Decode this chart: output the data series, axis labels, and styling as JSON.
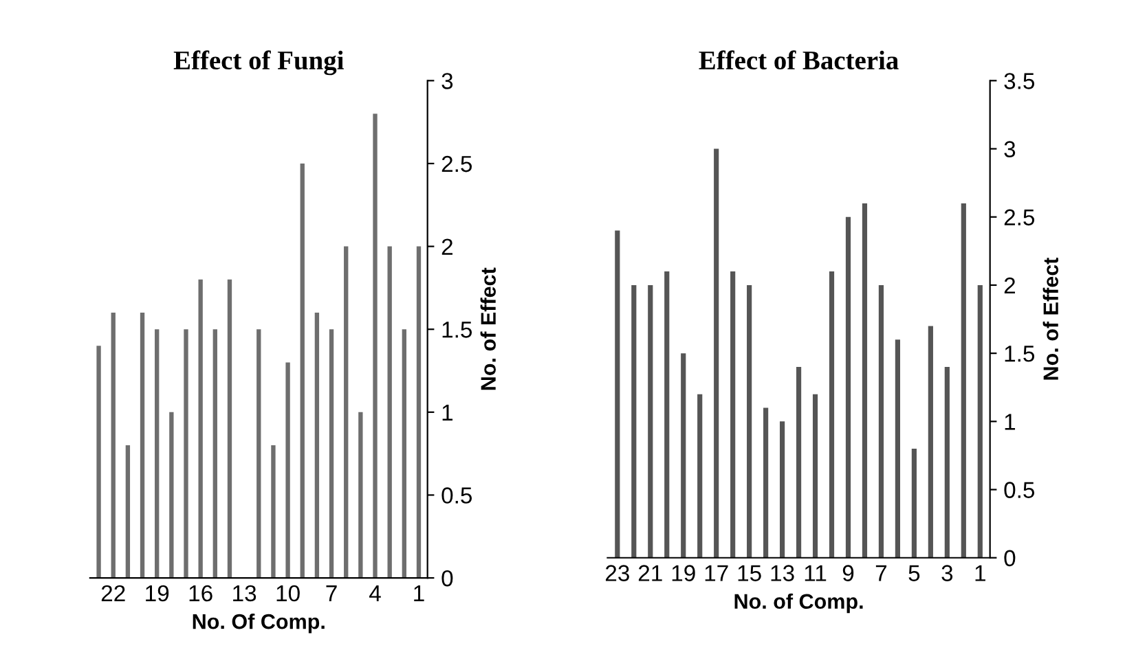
{
  "chart_data": [
    {
      "type": "bar",
      "title": "Effect of Fungi",
      "xlabel": "No. Of Comp.",
      "ylabel": "No. of Effect",
      "categories": [
        null,
        "22",
        null,
        null,
        "19",
        null,
        null,
        "16",
        null,
        null,
        "13",
        null,
        null,
        "10",
        null,
        null,
        "7",
        null,
        null,
        "4",
        null,
        null,
        "1"
      ],
      "values": [
        1.4,
        1.6,
        0.8,
        1.6,
        1.5,
        1.0,
        1.5,
        1.8,
        1.5,
        1.8,
        0,
        1.5,
        0.8,
        1.3,
        2.5,
        1.6,
        1.5,
        2.0,
        1.0,
        2.8,
        2.0,
        1.5,
        2.0
      ],
      "color": "#6e6e6e",
      "ylim": [
        0,
        3
      ],
      "yticks": [
        0,
        0.5,
        1,
        1.5,
        2,
        2.5,
        3
      ],
      "grid": false,
      "legend": false
    },
    {
      "type": "bar",
      "title": "Effect of Bacteria",
      "xlabel": "No. of Comp.",
      "ylabel": "No. of Effect",
      "categories": [
        "23",
        null,
        "21",
        null,
        "19",
        null,
        "17",
        null,
        "15",
        null,
        "13",
        null,
        "11",
        null,
        "9",
        null,
        "7",
        null,
        "5",
        null,
        "3",
        null,
        "1"
      ],
      "values": [
        2.4,
        2.0,
        2.0,
        2.1,
        1.5,
        1.2,
        3.0,
        2.1,
        2.0,
        1.1,
        1.0,
        1.4,
        1.2,
        2.1,
        2.5,
        2.6,
        2.0,
        1.6,
        0.8,
        1.7,
        1.4,
        2.6,
        2.0
      ],
      "color": "#555555",
      "ylim": [
        0,
        3.5
      ],
      "yticks": [
        0,
        0.5,
        1,
        1.5,
        2,
        2.5,
        3,
        3.5
      ],
      "grid": false,
      "legend": false
    }
  ]
}
